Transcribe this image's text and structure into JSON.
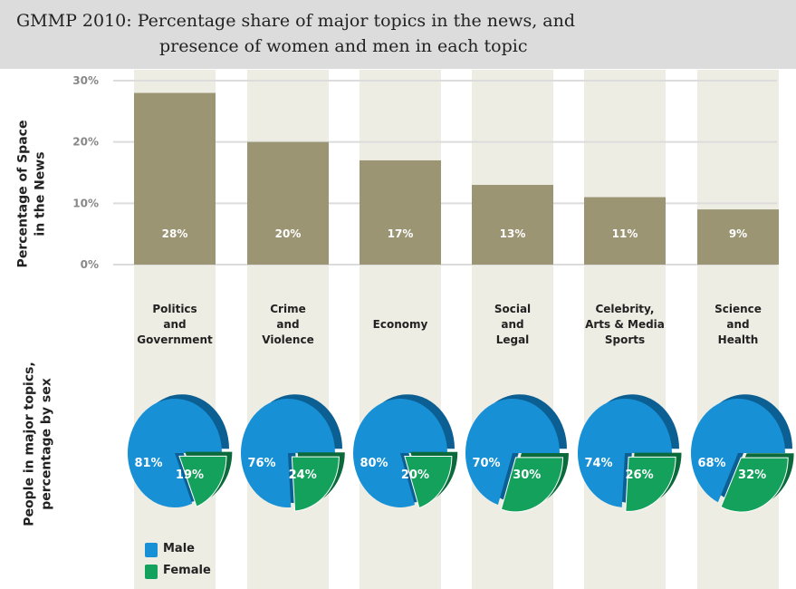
{
  "header": {
    "title_line1": "GMMP 2010: Percentage share of major topics in the news, and",
    "title_line2": "presence of women and men in each topic"
  },
  "colors": {
    "bar": "#9b9574",
    "column_band": "#eeede3",
    "male": "#1790d6",
    "male_dark": "#0b5f92",
    "female": "#14a15c",
    "female_dark": "#0b6a3b",
    "grid": "#dcdcdc",
    "axis_text": "#888888",
    "label_text": "#222222"
  },
  "chart_data": [
    {
      "type": "bar",
      "ylabel_lines": [
        "Percentage of Space",
        "in the News"
      ],
      "ylim": [
        0,
        30
      ],
      "yticks": [
        0,
        10,
        20,
        30
      ],
      "ytick_labels": [
        "0%",
        "10%",
        "20%",
        "30%"
      ],
      "grid": true,
      "categories": [
        [
          "Politics",
          "and",
          "Government"
        ],
        [
          "Crime",
          "and",
          "Violence"
        ],
        [
          "Economy"
        ],
        [
          "Social",
          "and",
          "Legal"
        ],
        [
          "Celebrity,",
          "Arts & Media",
          "Sports"
        ],
        [
          "Science",
          "and",
          "Health"
        ]
      ],
      "values": [
        28,
        20,
        17,
        13,
        11,
        9
      ],
      "data_labels": [
        "28%",
        "20%",
        "17%",
        "13%",
        "11%",
        "9%"
      ]
    },
    {
      "type": "pie",
      "ylabel_lines": [
        "People in major topics,",
        "percentage by sex"
      ],
      "legend": [
        {
          "name": "Male",
          "color": "#1790d6"
        },
        {
          "name": "Female",
          "color": "#14a15c"
        }
      ],
      "legend_position": "bottom-left",
      "pies": [
        {
          "male": 81,
          "female": 19,
          "male_label": "81%",
          "female_label": "19%"
        },
        {
          "male": 76,
          "female": 24,
          "male_label": "76%",
          "female_label": "24%"
        },
        {
          "male": 80,
          "female": 20,
          "male_label": "80%",
          "female_label": "20%"
        },
        {
          "male": 70,
          "female": 30,
          "male_label": "70%",
          "female_label": "30%"
        },
        {
          "male": 74,
          "female": 26,
          "male_label": "74%",
          "female_label": "26%"
        },
        {
          "male": 68,
          "female": 32,
          "male_label": "68%",
          "female_label": "32%"
        }
      ]
    }
  ]
}
